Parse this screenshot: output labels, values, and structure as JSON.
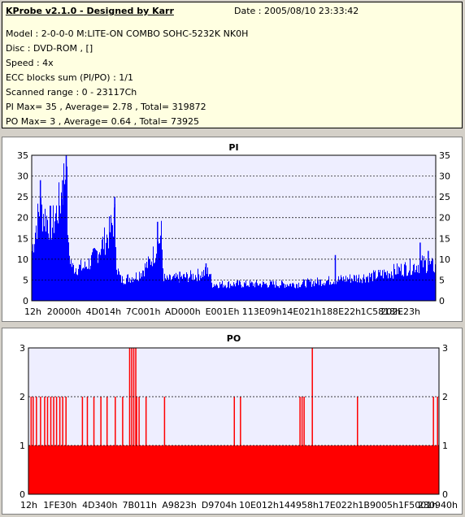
{
  "info": {
    "title": "KProbe v2.1.0 - Designed by Karr",
    "date": "Date : 2005/08/10 23:33:42",
    "lines": [
      "Model : 2-0-0-0 M:LITE-ON COMBO SOHC-5232K NK0H",
      "Disc : DVD-ROM ,  []",
      "Speed : 4x",
      "ECC blocks sum (PI/PO) : 1/1",
      "Scanned range : 0 - 23117Ch",
      "PI Max= 35 , Average= 2.78 , Total= 319872",
      "PO Max= 3 , Average= 0.64 , Total= 73925"
    ]
  },
  "chart_data": [
    {
      "type": "bar",
      "title": "PI",
      "color": "#0000ff",
      "ylim": [
        0,
        35
      ],
      "yticks": [
        0,
        5,
        10,
        15,
        20,
        25,
        30,
        35
      ],
      "xticks": [
        "12h",
        "20000h",
        "4D014h",
        "7C001h",
        "AD000h",
        "E001Eh",
        "113E09h",
        "14E021h",
        "188E22h",
        "1C5818h",
        "202E23h"
      ],
      "xrange": [
        0,
        1
      ],
      "grid": true,
      "profile": [
        {
          "x": 0.0,
          "y": 12
        },
        {
          "x": 0.01,
          "y": 18
        },
        {
          "x": 0.02,
          "y": 22
        },
        {
          "x": 0.035,
          "y": 20
        },
        {
          "x": 0.05,
          "y": 18
        },
        {
          "x": 0.07,
          "y": 24
        },
        {
          "x": 0.085,
          "y": 33
        },
        {
          "x": 0.09,
          "y": 12
        },
        {
          "x": 0.1,
          "y": 8
        },
        {
          "x": 0.13,
          "y": 8
        },
        {
          "x": 0.15,
          "y": 10
        },
        {
          "x": 0.17,
          "y": 13
        },
        {
          "x": 0.19,
          "y": 16
        },
        {
          "x": 0.205,
          "y": 20
        },
        {
          "x": 0.21,
          "y": 8
        },
        {
          "x": 0.22,
          "y": 5
        },
        {
          "x": 0.26,
          "y": 6
        },
        {
          "x": 0.29,
          "y": 9
        },
        {
          "x": 0.31,
          "y": 13
        },
        {
          "x": 0.32,
          "y": 16
        },
        {
          "x": 0.325,
          "y": 6
        },
        {
          "x": 0.33,
          "y": 5
        },
        {
          "x": 0.4,
          "y": 6
        },
        {
          "x": 0.44,
          "y": 7
        },
        {
          "x": 0.445,
          "y": 4
        },
        {
          "x": 0.55,
          "y": 4
        },
        {
          "x": 0.65,
          "y": 4
        },
        {
          "x": 0.75,
          "y": 5
        },
        {
          "x": 0.85,
          "y": 6
        },
        {
          "x": 0.93,
          "y": 8
        },
        {
          "x": 0.97,
          "y": 9
        },
        {
          "x": 1.0,
          "y": 8
        }
      ],
      "spikes": [
        {
          "x": 0.084,
          "y": 35
        },
        {
          "x": 0.075,
          "y": 29
        },
        {
          "x": 0.02,
          "y": 29
        },
        {
          "x": 0.204,
          "y": 25
        },
        {
          "x": 0.31,
          "y": 19
        },
        {
          "x": 0.365,
          "y": 7
        },
        {
          "x": 0.43,
          "y": 9
        },
        {
          "x": 0.75,
          "y": 11
        },
        {
          "x": 0.96,
          "y": 14
        },
        {
          "x": 0.98,
          "y": 12
        }
      ]
    },
    {
      "type": "bar",
      "title": "PO",
      "color": "#ff0000",
      "ylim": [
        0,
        3
      ],
      "yticks": [
        0,
        1,
        2,
        3
      ],
      "xticks": [
        "12h",
        "1FE30h",
        "4D340h",
        "7B011h",
        "A9823h",
        "D9704h",
        "10E012h",
        "144958h",
        "17E022h",
        "1B9005h",
        "1F5001h",
        "230940h"
      ],
      "xrange": [
        0,
        1
      ],
      "grid": true,
      "baseline": 1,
      "spikes": [
        {
          "x": 0.005,
          "y": 2
        },
        {
          "x": 0.01,
          "y": 2
        },
        {
          "x": 0.018,
          "y": 2
        },
        {
          "x": 0.028,
          "y": 2
        },
        {
          "x": 0.038,
          "y": 2
        },
        {
          "x": 0.045,
          "y": 2
        },
        {
          "x": 0.053,
          "y": 2
        },
        {
          "x": 0.06,
          "y": 2
        },
        {
          "x": 0.067,
          "y": 2
        },
        {
          "x": 0.075,
          "y": 2
        },
        {
          "x": 0.082,
          "y": 2
        },
        {
          "x": 0.09,
          "y": 2
        },
        {
          "x": 0.13,
          "y": 2
        },
        {
          "x": 0.142,
          "y": 2
        },
        {
          "x": 0.158,
          "y": 2
        },
        {
          "x": 0.175,
          "y": 2
        },
        {
          "x": 0.19,
          "y": 2
        },
        {
          "x": 0.21,
          "y": 2
        },
        {
          "x": 0.228,
          "y": 2
        },
        {
          "x": 0.245,
          "y": 3
        },
        {
          "x": 0.25,
          "y": 3
        },
        {
          "x": 0.255,
          "y": 3
        },
        {
          "x": 0.26,
          "y": 3
        },
        {
          "x": 0.262,
          "y": 2
        },
        {
          "x": 0.268,
          "y": 2
        },
        {
          "x": 0.285,
          "y": 2
        },
        {
          "x": 0.33,
          "y": 2
        },
        {
          "x": 0.5,
          "y": 2
        },
        {
          "x": 0.515,
          "y": 2
        },
        {
          "x": 0.66,
          "y": 2
        },
        {
          "x": 0.665,
          "y": 2
        },
        {
          "x": 0.67,
          "y": 2
        },
        {
          "x": 0.69,
          "y": 3
        },
        {
          "x": 0.8,
          "y": 2
        },
        {
          "x": 0.985,
          "y": 2
        },
        {
          "x": 0.995,
          "y": 2
        }
      ]
    }
  ]
}
